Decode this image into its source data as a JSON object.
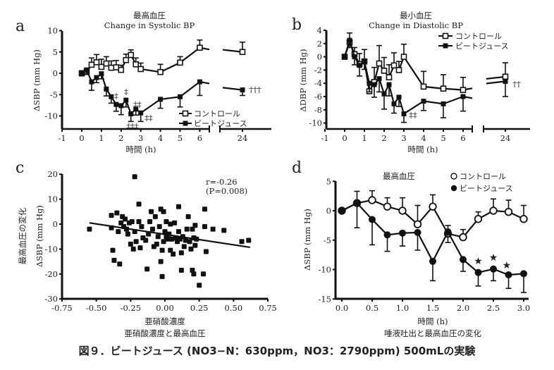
{
  "figure_caption": "図９．ビートジュース (NO3−N：630ppm，NO3：2790ppm) 500mLの実験",
  "chart_data": [
    {
      "panel": "a",
      "type": "line",
      "title": "最高血圧",
      "subtitle": "Change in Systolic BP",
      "xlabel": "時間 (h)",
      "ylabel": "ΔSBP (mm Hg)",
      "xlim": [
        -1,
        24
      ],
      "ylim": [
        -13,
        10
      ],
      "xticks": [
        "-1",
        "0",
        "1",
        "2",
        "3",
        "4",
        "5",
        "6",
        "24"
      ],
      "yticks": [
        "10",
        "5",
        "0",
        "-5",
        "-10"
      ],
      "legend": [
        "コントロール",
        "ビートジュース"
      ],
      "legend_position": "bottom-right",
      "series": [
        {
          "name": "コントロール",
          "marker": "open-square",
          "x": [
            0,
            0.25,
            0.5,
            0.75,
            1,
            1.25,
            1.5,
            1.75,
            2,
            2.25,
            2.5,
            2.75,
            3,
            4,
            5,
            6,
            24
          ],
          "y": [
            0,
            0.3,
            2,
            2.6,
            1.5,
            2.3,
            1.3,
            1.4,
            0.8,
            3.1,
            4.3,
            2.1,
            1.0,
            0.3,
            2.5,
            6.0,
            5.0
          ],
          "err": [
            0.6,
            0.8,
            1.6,
            1.8,
            1.8,
            1.6,
            1.6,
            1.6,
            1.1,
            1.4,
            1.2,
            1.5,
            1.4,
            1.8,
            1.4,
            1.8,
            2.3
          ]
        },
        {
          "name": "ビートジュース",
          "marker": "filled-square",
          "x": [
            0,
            0.25,
            0.5,
            0.75,
            1,
            1.25,
            1.5,
            1.75,
            2,
            2.25,
            2.5,
            2.75,
            3,
            4,
            5,
            6,
            24
          ],
          "y": [
            0,
            0.8,
            -2,
            -1,
            -0.1,
            -3.7,
            -5.5,
            -7.3,
            -7.6,
            -6.3,
            -9.5,
            -8.4,
            -9.3,
            -6.1,
            -5.5,
            -2.0,
            -3.9
          ],
          "err": [
            0.6,
            0.8,
            2.0,
            1.2,
            1.2,
            1.6,
            1.5,
            1.6,
            2.1,
            1.6,
            1.8,
            1.4,
            2.0,
            2.1,
            2.4,
            3.2,
            1.3
          ]
        }
      ],
      "annotations": [
        "‡",
        "‡",
        "‡‡",
        "‡‡‡",
        "‡‡",
        "†††"
      ]
    },
    {
      "panel": "b",
      "type": "line",
      "title": "最小血圧",
      "subtitle": "Change in Diastolic BP",
      "xlabel": "時間 (h)",
      "ylabel": "ΔDBP (mm Hg)",
      "xlim": [
        -1,
        24
      ],
      "ylim": [
        -11,
        4
      ],
      "xticks": [
        "-1",
        "0",
        "1",
        "2",
        "3",
        "4",
        "5",
        "6",
        "24"
      ],
      "yticks": [
        "4",
        "2",
        "0",
        "-2",
        "-4",
        "-6",
        "-8",
        "-10"
      ],
      "legend": [
        "コントロール",
        "ビートジュース"
      ],
      "legend_position": "top-right",
      "series": [
        {
          "name": "コントロール",
          "marker": "open-square",
          "x": [
            0,
            0.25,
            0.5,
            0.75,
            1,
            1.25,
            1.5,
            1.75,
            2,
            2.25,
            2.5,
            2.75,
            3,
            4,
            5,
            6,
            24
          ],
          "y": [
            0,
            2.2,
            0.4,
            -1.1,
            -0.7,
            -5.2,
            -3.8,
            -1.0,
            -2.1,
            -3.1,
            -1.3,
            -2.0,
            0,
            -4.5,
            -4.8,
            -5.0,
            -3.0
          ],
          "err": [
            0.3,
            1.4,
            1.0,
            1.6,
            1.8,
            1.3,
            2.2,
            2.7,
            2.0,
            1.9,
            1.9,
            1.3,
            1.9,
            2.3,
            2.1,
            1.9,
            2.1
          ]
        },
        {
          "name": "ビートジュース",
          "marker": "filled-square",
          "x": [
            0,
            0.25,
            0.5,
            0.75,
            1,
            1.25,
            1.5,
            1.75,
            2,
            2.25,
            2.5,
            2.75,
            3,
            4,
            5,
            6,
            24
          ],
          "y": [
            0,
            2.5,
            0.0,
            -1.3,
            -0.7,
            -4.0,
            -4.2,
            -3.3,
            -5.6,
            -4.2,
            -7.1,
            -6.1,
            -8.6,
            -6.7,
            -7.1,
            -6.0,
            -3.7
          ],
          "err": [
            0.3,
            1.1,
            1.2,
            1.6,
            1.2,
            1.3,
            1.9,
            2.0,
            2.3,
            1.7,
            1.4,
            1.4,
            1.3,
            1.4,
            2.1,
            2.2,
            2.3
          ]
        }
      ],
      "annotations": [
        "‡‡",
        "††"
      ]
    },
    {
      "panel": "c",
      "type": "scatter",
      "title": "",
      "xlabel": "亜硝酸濃度",
      "sub_xlabel": "亜硝酸濃度と最高血圧",
      "ylabel": "ΔSBP (mm Hg)",
      "ylabel_outer": "最高血圧の変化",
      "xlim": [
        -0.75,
        0.75
      ],
      "ylim": [
        -30,
        20
      ],
      "xticks": [
        "-0.75",
        "-0.50",
        "-0.25",
        "0.00",
        "0.25",
        "0.50",
        "0.75"
      ],
      "yticks": [
        "20",
        "10",
        "0",
        "-10",
        "-20",
        "-30"
      ],
      "annotation_r": "r=-0.26",
      "annotation_p": "(P=0.008)",
      "regression": {
        "x": [
          -0.55,
          0.62
        ],
        "y": [
          0.5,
          -9.3
        ]
      },
      "points": [
        [
          -0.55,
          -2
        ],
        [
          -0.39,
          3.5
        ],
        [
          -0.39,
          -1.5
        ],
        [
          -0.38,
          -10.5
        ],
        [
          -0.37,
          -14.5
        ],
        [
          -0.35,
          4.5
        ],
        [
          -0.34,
          -3
        ],
        [
          -0.33,
          -16
        ],
        [
          -0.32,
          0.5
        ],
        [
          -0.31,
          3
        ],
        [
          -0.3,
          -1
        ],
        [
          -0.29,
          2
        ],
        [
          -0.28,
          -2
        ],
        [
          -0.27,
          -4
        ],
        [
          -0.26,
          0.5
        ],
        [
          -0.25,
          -8
        ],
        [
          -0.24,
          1
        ],
        [
          -0.23,
          -10
        ],
        [
          -0.22,
          19
        ],
        [
          -0.22,
          -3
        ],
        [
          -0.21,
          -7
        ],
        [
          -0.19,
          8
        ],
        [
          -0.19,
          1
        ],
        [
          -0.18,
          -9.5
        ],
        [
          -0.17,
          -1
        ],
        [
          -0.16,
          -5.5
        ],
        [
          -0.14,
          -6.5
        ],
        [
          -0.13,
          -18
        ],
        [
          -0.12,
          -4
        ],
        [
          -0.11,
          1
        ],
        [
          -0.1,
          5
        ],
        [
          -0.09,
          -2
        ],
        [
          -0.08,
          -9
        ],
        [
          -0.07,
          3
        ],
        [
          -0.06,
          -8
        ],
        [
          -0.05,
          -5
        ],
        [
          -0.04,
          -1
        ],
        [
          -0.03,
          6
        ],
        [
          -0.03,
          -15
        ],
        [
          -0.02,
          -21
        ],
        [
          -0.02,
          -10.5
        ],
        [
          -0.01,
          5
        ],
        [
          -0.01,
          -7
        ],
        [
          0.0,
          -3
        ],
        [
          0.01,
          1
        ],
        [
          0.01,
          -5
        ],
        [
          0.02,
          -6
        ],
        [
          0.03,
          -4
        ],
        [
          0.04,
          0
        ],
        [
          0.04,
          -10.5
        ],
        [
          0.05,
          -6
        ],
        [
          0.06,
          -12
        ],
        [
          0.07,
          0.5
        ],
        [
          0.08,
          -5.5
        ],
        [
          0.09,
          -7
        ],
        [
          0.1,
          7
        ],
        [
          0.1,
          -3
        ],
        [
          0.11,
          -6
        ],
        [
          0.12,
          -18.5
        ],
        [
          0.12,
          -11.5
        ],
        [
          0.13,
          -5
        ],
        [
          0.14,
          -9
        ],
        [
          0.15,
          -6.5
        ],
        [
          0.16,
          -2
        ],
        [
          0.17,
          3
        ],
        [
          0.18,
          -7
        ],
        [
          0.19,
          -10
        ],
        [
          0.2,
          -18.5
        ],
        [
          0.2,
          -2
        ],
        [
          0.21,
          -20
        ],
        [
          0.21,
          -5.5
        ],
        [
          0.22,
          -8.5
        ],
        [
          0.22,
          -0.5
        ],
        [
          0.23,
          -6
        ],
        [
          0.25,
          -24.5
        ],
        [
          0.28,
          -20
        ],
        [
          0.29,
          6
        ],
        [
          0.29,
          -1
        ],
        [
          0.3,
          -11
        ],
        [
          0.35,
          -2
        ],
        [
          0.43,
          -2.5
        ],
        [
          0.56,
          -7
        ],
        [
          0.61,
          -6.5
        ]
      ]
    },
    {
      "panel": "d",
      "type": "line",
      "title": "最高血圧",
      "xlabel": "時間 (h)",
      "sub_xlabel": "唾液吐出と最高血圧の変化",
      "ylabel": "ΔSBP (mm Hg)",
      "xlim": [
        -0.1,
        3.1
      ],
      "ylim": [
        -15,
        5
      ],
      "xticks": [
        "0.0",
        "0.5",
        "1.0",
        "1.5",
        "2.0",
        "2.5",
        "3.0"
      ],
      "yticks": [
        "5",
        "0",
        "-5",
        "-10",
        "-15"
      ],
      "legend": [
        "コントロール",
        "ビートジュース"
      ],
      "legend_position": "top-right",
      "series": [
        {
          "name": "コントロール",
          "marker": "open-circle",
          "x": [
            0,
            0.25,
            0.5,
            0.75,
            1.0,
            1.25,
            1.5,
            1.75,
            2.0,
            2.25,
            2.5,
            2.75,
            3.0
          ],
          "y": [
            0,
            1.3,
            1.8,
            0.7,
            0,
            -2.3,
            0.7,
            -3.9,
            -4.5,
            -1.4,
            0,
            -0.2,
            -1.4
          ],
          "err": [
            0,
            2.0,
            1.6,
            1.5,
            2.2,
            3.2,
            2.0,
            1.4,
            1.3,
            1.2,
            2.0,
            2.0,
            2.3
          ]
        },
        {
          "name": "ビートジュース",
          "marker": "filled-circle",
          "x": [
            0,
            0.25,
            0.5,
            0.75,
            1.0,
            1.25,
            1.5,
            1.75,
            2.0,
            2.25,
            2.5,
            2.75,
            3.0
          ],
          "y": [
            0,
            1.3,
            -1.5,
            -4.1,
            -3.8,
            -3.7,
            -8.6,
            -3.6,
            -8.3,
            -10.5,
            -9.9,
            -10.9,
            -10.7
          ],
          "err": [
            0,
            4.2,
            4.3,
            2.8,
            2.2,
            3.0,
            3.3,
            1.8,
            2.0,
            2.3,
            2.0,
            2.3,
            3.2
          ]
        }
      ],
      "annotations": [
        "★",
        "★",
        "★"
      ]
    }
  ]
}
